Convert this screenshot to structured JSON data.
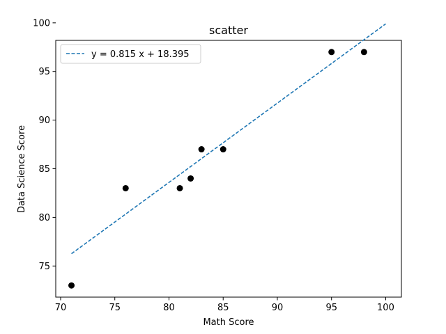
{
  "chart_data": {
    "type": "scatter",
    "title": "scatter",
    "xlabel": "Math Score",
    "ylabel": "Data Science Score",
    "xlim": [
      69.55,
      101.45
    ],
    "ylim": [
      71.8,
      98.2
    ],
    "x_ticks": [
      70,
      75,
      80,
      85,
      90,
      95,
      100
    ],
    "y_ticks": [
      75,
      80,
      85,
      90,
      95,
      100
    ],
    "points": [
      {
        "x": 71,
        "y": 73
      },
      {
        "x": 76,
        "y": 83
      },
      {
        "x": 81,
        "y": 83
      },
      {
        "x": 82,
        "y": 84
      },
      {
        "x": 83,
        "y": 87
      },
      {
        "x": 85,
        "y": 87
      },
      {
        "x": 95,
        "y": 97
      },
      {
        "x": 98,
        "y": 97
      }
    ],
    "point_color": "#000000",
    "fit_line": {
      "label": "y = 0.815 x + 18.395",
      "slope": 0.815,
      "intercept": 18.395,
      "x_range": [
        71,
        100
      ],
      "color": "#1f77b4",
      "style": "dashed"
    },
    "legend_position": "top-left",
    "grid": false
  }
}
